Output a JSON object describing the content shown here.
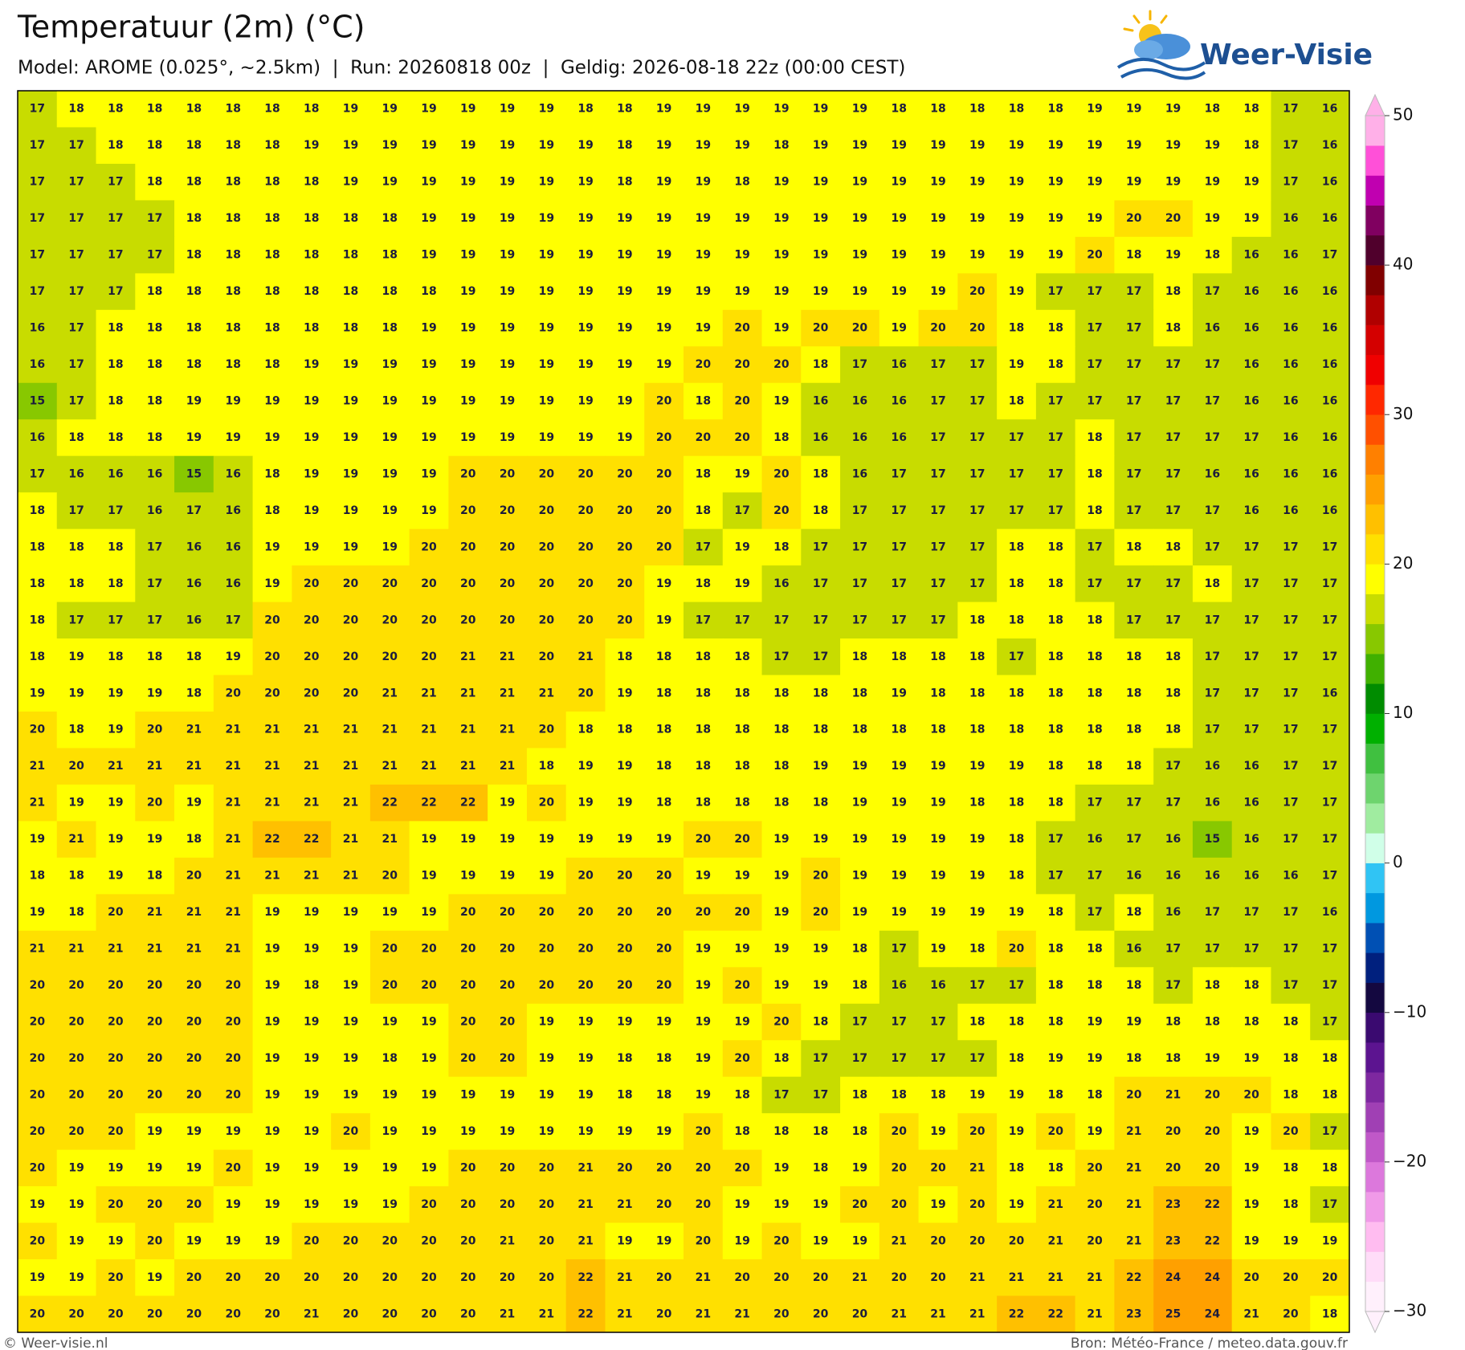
{
  "title": "Temperatuur (2m) (°C)",
  "subtitle": "Model: AROME (0.025°, ~2.5km)  |  Run: 20260818 00z  |  Geldig: 2026-08-18 22z (00:00 CEST)",
  "logo": "Weer-Visie",
  "map": {
    "values": [
      [
        17,
        18,
        18,
        18,
        18,
        18,
        18,
        18,
        19,
        19,
        19,
        19,
        19,
        19,
        18,
        18,
        19,
        19,
        19,
        19,
        19,
        19,
        18,
        18,
        18,
        18,
        18,
        19,
        19,
        19,
        18,
        18,
        17,
        16
      ],
      [
        17,
        17,
        18,
        18,
        18,
        18,
        18,
        19,
        19,
        19,
        19,
        19,
        19,
        19,
        19,
        18,
        19,
        19,
        19,
        18,
        19,
        19,
        19,
        19,
        19,
        19,
        19,
        19,
        19,
        19,
        19,
        18,
        17,
        16
      ],
      [
        17,
        17,
        17,
        18,
        18,
        18,
        18,
        18,
        19,
        19,
        19,
        19,
        19,
        19,
        19,
        18,
        19,
        19,
        18,
        19,
        19,
        19,
        19,
        19,
        19,
        19,
        19,
        19,
        19,
        19,
        19,
        19,
        17,
        16
      ],
      [
        17,
        17,
        17,
        17,
        18,
        18,
        18,
        18,
        18,
        18,
        19,
        19,
        19,
        19,
        19,
        19,
        19,
        19,
        19,
        19,
        19,
        19,
        19,
        19,
        19,
        19,
        19,
        19,
        20,
        20,
        19,
        19,
        16,
        16
      ],
      [
        17,
        17,
        17,
        17,
        18,
        18,
        18,
        18,
        18,
        18,
        19,
        19,
        19,
        19,
        19,
        19,
        19,
        19,
        19,
        19,
        19,
        19,
        19,
        19,
        19,
        19,
        19,
        20,
        18,
        19,
        18,
        16,
        16,
        17
      ],
      [
        17,
        17,
        17,
        18,
        18,
        18,
        18,
        18,
        18,
        18,
        18,
        19,
        19,
        19,
        19,
        19,
        19,
        19,
        19,
        19,
        19,
        19,
        19,
        19,
        20,
        19,
        17,
        17,
        17,
        18,
        17,
        16,
        16,
        16
      ],
      [
        16,
        17,
        18,
        18,
        18,
        18,
        18,
        18,
        18,
        18,
        19,
        19,
        19,
        19,
        19,
        19,
        19,
        19,
        20,
        19,
        20,
        20,
        19,
        20,
        20,
        18,
        18,
        17,
        17,
        18,
        16,
        16,
        16,
        16
      ],
      [
        16,
        17,
        18,
        18,
        18,
        18,
        18,
        19,
        19,
        19,
        19,
        19,
        19,
        19,
        19,
        19,
        19,
        20,
        20,
        20,
        18,
        17,
        16,
        17,
        17,
        19,
        18,
        17,
        17,
        17,
        17,
        16,
        16,
        16
      ],
      [
        15,
        17,
        18,
        18,
        19,
        19,
        19,
        19,
        19,
        19,
        19,
        19,
        19,
        19,
        19,
        19,
        20,
        18,
        20,
        19,
        16,
        16,
        16,
        17,
        17,
        18,
        17,
        17,
        17,
        17,
        17,
        16,
        16,
        16
      ],
      [
        16,
        18,
        18,
        18,
        19,
        19,
        19,
        19,
        19,
        19,
        19,
        19,
        19,
        19,
        19,
        19,
        20,
        20,
        20,
        18,
        16,
        16,
        16,
        17,
        17,
        17,
        17,
        18,
        17,
        17,
        17,
        17,
        16,
        16
      ],
      [
        17,
        16,
        16,
        16,
        15,
        16,
        18,
        19,
        19,
        19,
        19,
        20,
        20,
        20,
        20,
        20,
        20,
        18,
        19,
        20,
        18,
        16,
        17,
        17,
        17,
        17,
        17,
        18,
        17,
        17,
        16,
        16,
        16,
        16
      ],
      [
        18,
        17,
        17,
        16,
        17,
        16,
        18,
        19,
        19,
        19,
        19,
        20,
        20,
        20,
        20,
        20,
        20,
        18,
        17,
        20,
        18,
        17,
        17,
        17,
        17,
        17,
        17,
        18,
        17,
        17,
        17,
        16,
        16,
        16
      ],
      [
        18,
        18,
        18,
        17,
        16,
        16,
        19,
        19,
        19,
        19,
        20,
        20,
        20,
        20,
        20,
        20,
        20,
        17,
        19,
        18,
        17,
        17,
        17,
        17,
        17,
        18,
        18,
        17,
        18,
        18,
        17,
        17,
        17,
        17
      ],
      [
        18,
        18,
        18,
        17,
        16,
        16,
        19,
        20,
        20,
        20,
        20,
        20,
        20,
        20,
        20,
        20,
        19,
        18,
        19,
        16,
        17,
        17,
        17,
        17,
        17,
        18,
        18,
        17,
        17,
        17,
        18,
        17,
        17,
        17
      ],
      [
        18,
        17,
        17,
        17,
        16,
        17,
        20,
        20,
        20,
        20,
        20,
        20,
        20,
        20,
        20,
        20,
        19,
        17,
        17,
        17,
        17,
        17,
        17,
        17,
        18,
        18,
        18,
        18,
        17,
        17,
        17,
        17,
        17,
        17
      ],
      [
        18,
        19,
        18,
        18,
        18,
        19,
        20,
        20,
        20,
        20,
        20,
        21,
        21,
        20,
        21,
        18,
        18,
        18,
        18,
        17,
        17,
        18,
        18,
        18,
        18,
        17,
        18,
        18,
        18,
        18,
        17,
        17,
        17,
        17
      ],
      [
        19,
        19,
        19,
        19,
        18,
        20,
        20,
        20,
        20,
        21,
        21,
        21,
        21,
        21,
        20,
        19,
        18,
        18,
        18,
        18,
        18,
        18,
        19,
        18,
        18,
        18,
        18,
        18,
        18,
        18,
        17,
        17,
        17,
        16
      ],
      [
        20,
        18,
        19,
        20,
        21,
        21,
        21,
        21,
        21,
        21,
        21,
        21,
        21,
        20,
        18,
        18,
        18,
        18,
        18,
        18,
        18,
        18,
        18,
        18,
        18,
        18,
        18,
        18,
        18,
        18,
        17,
        17,
        17,
        17
      ],
      [
        21,
        20,
        21,
        21,
        21,
        21,
        21,
        21,
        21,
        21,
        21,
        21,
        21,
        18,
        19,
        19,
        18,
        18,
        18,
        18,
        19,
        19,
        19,
        19,
        19,
        19,
        18,
        18,
        18,
        17,
        16,
        16,
        17,
        17
      ],
      [
        21,
        19,
        19,
        20,
        19,
        21,
        21,
        21,
        21,
        22,
        22,
        22,
        19,
        20,
        19,
        19,
        18,
        18,
        18,
        18,
        18,
        19,
        19,
        19,
        18,
        18,
        18,
        17,
        17,
        17,
        16,
        16,
        17,
        17
      ],
      [
        19,
        21,
        19,
        19,
        18,
        21,
        22,
        22,
        21,
        21,
        19,
        19,
        19,
        19,
        19,
        19,
        19,
        20,
        20,
        19,
        19,
        19,
        19,
        19,
        19,
        18,
        17,
        16,
        17,
        16,
        15,
        16,
        17,
        17
      ],
      [
        18,
        18,
        19,
        18,
        20,
        21,
        21,
        21,
        21,
        20,
        19,
        19,
        19,
        19,
        20,
        20,
        20,
        19,
        19,
        19,
        20,
        19,
        19,
        19,
        19,
        18,
        17,
        17,
        16,
        16,
        16,
        16,
        16,
        17
      ],
      [
        19,
        18,
        20,
        21,
        21,
        21,
        19,
        19,
        19,
        19,
        19,
        20,
        20,
        20,
        20,
        20,
        20,
        20,
        20,
        19,
        20,
        19,
        19,
        19,
        19,
        19,
        18,
        17,
        18,
        16,
        17,
        17,
        17,
        16
      ],
      [
        21,
        21,
        21,
        21,
        21,
        21,
        19,
        19,
        19,
        20,
        20,
        20,
        20,
        20,
        20,
        20,
        20,
        19,
        19,
        19,
        19,
        18,
        17,
        19,
        18,
        20,
        18,
        18,
        16,
        17,
        17,
        17,
        17,
        17
      ],
      [
        20,
        20,
        20,
        20,
        20,
        20,
        19,
        18,
        19,
        20,
        20,
        20,
        20,
        20,
        20,
        20,
        20,
        19,
        20,
        19,
        19,
        18,
        16,
        16,
        17,
        17,
        18,
        18,
        18,
        17,
        18,
        18,
        17,
        17
      ],
      [
        20,
        20,
        20,
        20,
        20,
        20,
        19,
        19,
        19,
        19,
        19,
        20,
        20,
        19,
        19,
        19,
        19,
        19,
        19,
        20,
        18,
        17,
        17,
        17,
        18,
        18,
        18,
        19,
        19,
        18,
        18,
        18,
        18,
        17
      ],
      [
        20,
        20,
        20,
        20,
        20,
        20,
        19,
        19,
        19,
        18,
        19,
        20,
        20,
        19,
        19,
        18,
        18,
        19,
        20,
        18,
        17,
        17,
        17,
        17,
        17,
        18,
        19,
        19,
        18,
        18,
        19,
        19,
        18,
        18
      ],
      [
        20,
        20,
        20,
        20,
        20,
        20,
        19,
        19,
        19,
        19,
        19,
        19,
        19,
        19,
        19,
        18,
        18,
        19,
        18,
        17,
        17,
        18,
        18,
        18,
        19,
        19,
        18,
        18,
        20,
        21,
        20,
        20,
        18,
        18
      ],
      [
        20,
        20,
        20,
        19,
        19,
        19,
        19,
        19,
        20,
        19,
        19,
        19,
        19,
        19,
        19,
        19,
        19,
        20,
        18,
        18,
        18,
        18,
        20,
        19,
        20,
        19,
        20,
        19,
        21,
        20,
        20,
        19,
        20,
        17
      ],
      [
        20,
        19,
        19,
        19,
        19,
        20,
        19,
        19,
        19,
        19,
        19,
        20,
        20,
        20,
        21,
        20,
        20,
        20,
        20,
        19,
        18,
        19,
        20,
        20,
        21,
        18,
        18,
        20,
        21,
        20,
        20,
        19,
        18,
        18
      ],
      [
        19,
        19,
        20,
        20,
        20,
        19,
        19,
        19,
        19,
        19,
        20,
        20,
        20,
        20,
        21,
        21,
        20,
        20,
        19,
        19,
        19,
        20,
        20,
        19,
        20,
        19,
        21,
        20,
        21,
        23,
        22,
        19,
        18,
        17
      ],
      [
        20,
        19,
        19,
        20,
        19,
        19,
        19,
        20,
        20,
        20,
        20,
        20,
        21,
        20,
        21,
        19,
        19,
        20,
        19,
        20,
        19,
        19,
        21,
        20,
        20,
        20,
        21,
        20,
        21,
        23,
        22,
        19,
        19,
        19
      ],
      [
        19,
        19,
        20,
        19,
        20,
        20,
        20,
        20,
        20,
        20,
        20,
        20,
        20,
        20,
        22,
        21,
        20,
        21,
        20,
        20,
        20,
        21,
        20,
        20,
        21,
        21,
        21,
        21,
        22,
        24,
        24,
        20,
        20,
        20
      ],
      [
        20,
        20,
        20,
        20,
        20,
        20,
        20,
        21,
        20,
        20,
        20,
        20,
        21,
        21,
        22,
        21,
        20,
        21,
        21,
        20,
        20,
        20,
        21,
        21,
        21,
        22,
        22,
        21,
        23,
        25,
        24,
        21,
        20,
        18
      ]
    ]
  },
  "colorbar": {
    "clim": [
      -30,
      50
    ],
    "ticks": [
      50,
      40,
      30,
      20,
      10,
      0,
      {
        "value": -10,
        "label": "−10"
      },
      {
        "value": -20,
        "label": "−20"
      },
      {
        "value": -30,
        "label": "−30"
      }
    ],
    "colors": [
      "#fff0fc",
      "#ffdcf8",
      "#ffbcf0",
      "#f09ae8",
      "#dc78dc",
      "#c058c8",
      "#a040b4",
      "#7e28a0",
      "#5c1490",
      "#3a0a70",
      "#140840",
      "#00207e",
      "#0050b4",
      "#0098e0",
      "#30c4f4",
      "#d0ffe8",
      "#a0eca0",
      "#6ed46e",
      "#40c040",
      "#00b000",
      "#008c00",
      "#40b000",
      "#88c800",
      "#c8dc00",
      "#ffff00",
      "#ffe000",
      "#ffc000",
      "#ffa000",
      "#ff8000",
      "#ff5000",
      "#ff2800",
      "#f00000",
      "#d40000",
      "#b00000",
      "#800000",
      "#50002c",
      "#800060",
      "#c000b0",
      "#ff50d8",
      "#ffb0e8"
    ]
  },
  "footer": {
    "left": "© Weer-visie.nl",
    "right": "Bron: Météo-France / meteo.data.gouv.fr"
  }
}
